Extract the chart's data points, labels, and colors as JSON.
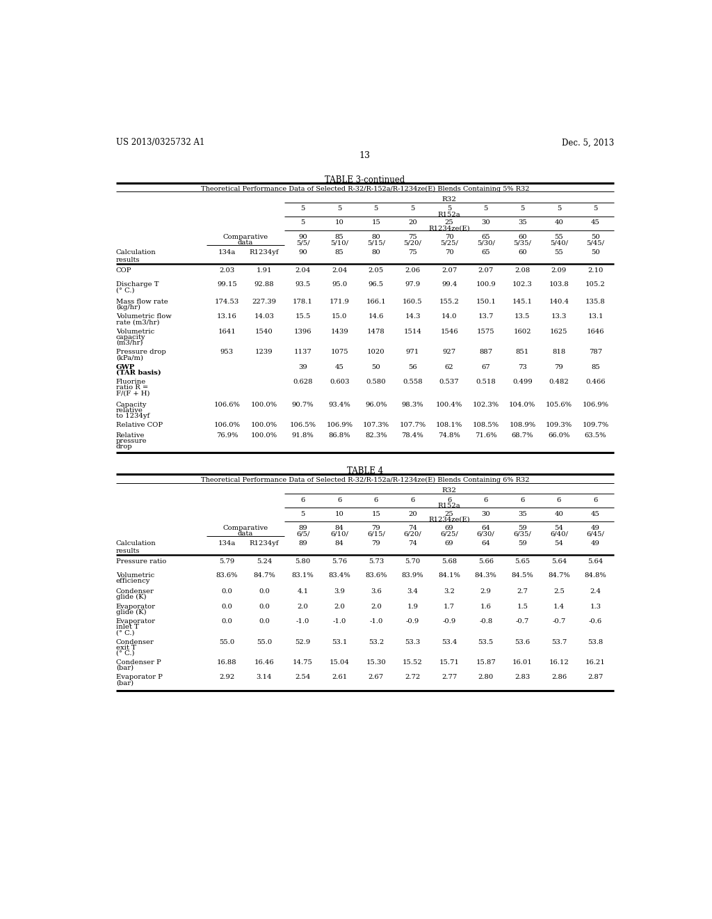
{
  "page_header_left": "US 2013/0325732 A1",
  "page_header_right": "Dec. 5, 2013",
  "page_number": "13",
  "table3_title": "TABLE 3-continued",
  "table3_subtitle": "Theoretical Performance Data of Selected R-32/R-152a/R-1234ze(E) Blends Containing 5% R32",
  "table3_r32_label": "R32",
  "table3_r32_values": [
    "5",
    "5",
    "5",
    "5",
    "5\nR152a",
    "5",
    "5",
    "5",
    "5"
  ],
  "table3_r152a_values": [
    "5",
    "10",
    "15",
    "20",
    "25\nR1234ze(E)",
    "30",
    "35",
    "40",
    "45"
  ],
  "table3_calc_header_line1": "Comparative",
  "table3_calc_header_line2": "data",
  "table3_calc_values": [
    "90\n5/5/",
    "85\n5/10/",
    "80\n5/15/",
    "75\n5/20/",
    "70\n5/25/",
    "65\n5/30/",
    "60\n5/35/",
    "55\n5/40/",
    "50\n5/45/"
  ],
  "table3_ref_vals1": [
    "90",
    "85",
    "80",
    "75",
    "70",
    "65",
    "60",
    "55",
    "50"
  ],
  "table3_rows": [
    {
      "label": [
        "COP"
      ],
      "ref1": "2.03",
      "ref2": "1.91",
      "vals": [
        "2.04",
        "2.04",
        "2.05",
        "2.06",
        "2.07",
        "2.07",
        "2.08",
        "2.09",
        "2.10"
      ],
      "bold": false
    },
    {
      "label": [
        "Discharge T",
        "(° C.)"
      ],
      "ref1": "99.15",
      "ref2": "92.88",
      "vals": [
        "93.5",
        "95.0",
        "96.5",
        "97.9",
        "99.4",
        "100.9",
        "102.3",
        "103.8",
        "105.2"
      ],
      "bold": false
    },
    {
      "label": [
        "Mass flow rate",
        "(kg/hr)"
      ],
      "ref1": "174.53",
      "ref2": "227.39",
      "vals": [
        "178.1",
        "171.9",
        "166.1",
        "160.5",
        "155.2",
        "150.1",
        "145.1",
        "140.4",
        "135.8"
      ],
      "bold": false
    },
    {
      "label": [
        "Volumetric flow",
        "rate (m3/hr)"
      ],
      "ref1": "13.16",
      "ref2": "14.03",
      "vals": [
        "15.5",
        "15.0",
        "14.6",
        "14.3",
        "14.0",
        "13.7",
        "13.5",
        "13.3",
        "13.1"
      ],
      "bold": false
    },
    {
      "label": [
        "Volumetric",
        "capacity",
        "(m3/hr)"
      ],
      "ref1": "1641",
      "ref2": "1540",
      "vals": [
        "1396",
        "1439",
        "1478",
        "1514",
        "1546",
        "1575",
        "1602",
        "1625",
        "1646"
      ],
      "bold": false
    },
    {
      "label": [
        "Pressure drop",
        "(kPa/m)"
      ],
      "ref1": "953",
      "ref2": "1239",
      "vals": [
        "1137",
        "1075",
        "1020",
        "971",
        "927",
        "887",
        "851",
        "818",
        "787"
      ],
      "bold": false
    },
    {
      "label": [
        "GWP",
        "(TAR basis)"
      ],
      "ref1": "",
      "ref2": "",
      "vals": [
        "39",
        "45",
        "50",
        "56",
        "62",
        "67",
        "73",
        "79",
        "85"
      ],
      "bold": true
    },
    {
      "label": [
        "Fluorine",
        "ratio R =",
        "F/(F + H)"
      ],
      "ref1": "",
      "ref2": "",
      "vals": [
        "0.628",
        "0.603",
        "0.580",
        "0.558",
        "0.537",
        "0.518",
        "0.499",
        "0.482",
        "0.466"
      ],
      "bold": false
    },
    {
      "label": [
        "Capacity",
        "relative",
        "to 1234yf"
      ],
      "ref1": "106.6%",
      "ref2": "100.0%",
      "vals": [
        "90.7%",
        "93.4%",
        "96.0%",
        "98.3%",
        "100.4%",
        "102.3%",
        "104.0%",
        "105.6%",
        "106.9%"
      ],
      "bold": false
    },
    {
      "label": [
        "Relative COP"
      ],
      "ref1": "106.0%",
      "ref2": "100.0%",
      "vals": [
        "106.5%",
        "106.9%",
        "107.3%",
        "107.7%",
        "108.1%",
        "108.5%",
        "108.9%",
        "109.3%",
        "109.7%"
      ],
      "bold": false
    },
    {
      "label": [
        "Relative",
        "pressure",
        "drop"
      ],
      "ref1": "76.9%",
      "ref2": "100.0%",
      "vals": [
        "91.8%",
        "86.8%",
        "82.3%",
        "78.4%",
        "74.8%",
        "71.6%",
        "68.7%",
        "66.0%",
        "63.5%"
      ],
      "bold": false
    }
  ],
  "table3_row_heights": [
    26,
    32,
    28,
    28,
    38,
    28,
    28,
    42,
    38,
    20,
    36
  ],
  "table4_title": "TABLE 4",
  "table4_subtitle": "Theoretical Performance Data of Selected R-32/R-152a/R-1234ze(E) Blends Containing 6% R32",
  "table4_r32_values": [
    "6",
    "6",
    "6",
    "6",
    "6\nR152a",
    "6",
    "6",
    "6",
    "6"
  ],
  "table4_r152a_values": [
    "5",
    "10",
    "15",
    "20",
    "25\nR1234ze(E)",
    "30",
    "35",
    "40",
    "45"
  ],
  "table4_calc_values": [
    "89\n6/5/",
    "84\n6/10/",
    "79\n6/15/",
    "74\n6/20/",
    "69\n6/25/",
    "64\n6/30/",
    "59\n6/35/",
    "54\n6/40/",
    "49\n6/45/"
  ],
  "table4_ref_vals1": [
    "89",
    "84",
    "79",
    "74",
    "69",
    "64",
    "59",
    "54",
    "49"
  ],
  "table4_rows": [
    {
      "label": [
        "Pressure ratio"
      ],
      "ref1": "5.79",
      "ref2": "5.24",
      "vals": [
        "5.80",
        "5.76",
        "5.73",
        "5.70",
        "5.68",
        "5.66",
        "5.65",
        "5.64",
        "5.64"
      ],
      "bold": false
    },
    {
      "label": [
        "Volumetric",
        "efficiency"
      ],
      "ref1": "83.6%",
      "ref2": "84.7%",
      "vals": [
        "83.1%",
        "83.4%",
        "83.6%",
        "83.9%",
        "84.1%",
        "84.3%",
        "84.5%",
        "84.7%",
        "84.8%"
      ],
      "bold": false
    },
    {
      "label": [
        "Condenser",
        "glide (K)"
      ],
      "ref1": "0.0",
      "ref2": "0.0",
      "vals": [
        "4.1",
        "3.9",
        "3.6",
        "3.4",
        "3.2",
        "2.9",
        "2.7",
        "2.5",
        "2.4"
      ],
      "bold": false
    },
    {
      "label": [
        "Evaporator",
        "glide (K)"
      ],
      "ref1": "0.0",
      "ref2": "0.0",
      "vals": [
        "2.0",
        "2.0",
        "2.0",
        "1.9",
        "1.7",
        "1.6",
        "1.5",
        "1.4",
        "1.3"
      ],
      "bold": false
    },
    {
      "label": [
        "Evaporator",
        "inlet T",
        "(° C.)"
      ],
      "ref1": "0.0",
      "ref2": "0.0",
      "vals": [
        "-1.0",
        "-1.0",
        "-1.0",
        "-0.9",
        "-0.9",
        "-0.8",
        "-0.7",
        "-0.7",
        "-0.6"
      ],
      "bold": false
    },
    {
      "label": [
        "Condenser",
        "exit T",
        "(° C.)"
      ],
      "ref1": "55.0",
      "ref2": "55.0",
      "vals": [
        "52.9",
        "53.1",
        "53.2",
        "53.3",
        "53.4",
        "53.5",
        "53.6",
        "53.7",
        "53.8"
      ],
      "bold": false
    },
    {
      "label": [
        "Condenser P",
        "(bar)"
      ],
      "ref1": "16.88",
      "ref2": "16.46",
      "vals": [
        "14.75",
        "15.04",
        "15.30",
        "15.52",
        "15.71",
        "15.87",
        "16.01",
        "16.12",
        "16.21"
      ],
      "bold": false
    },
    {
      "label": [
        "Evaporator P",
        "(bar)"
      ],
      "ref1": "2.92",
      "ref2": "3.14",
      "vals": [
        "2.54",
        "2.61",
        "2.67",
        "2.72",
        "2.77",
        "2.80",
        "2.83",
        "2.86",
        "2.87"
      ],
      "bold": false
    }
  ],
  "table4_row_heights": [
    26,
    30,
    28,
    28,
    38,
    38,
    28,
    28
  ],
  "background_color": "#ffffff",
  "text_color": "#000000",
  "font_size": 7.2,
  "small_font_size": 6.8
}
